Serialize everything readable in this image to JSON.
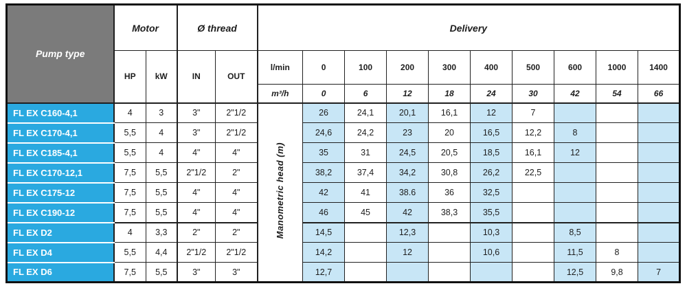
{
  "header": {
    "pump_type": "Pump type",
    "motor": "Motor",
    "thread": "Ø thread",
    "delivery": "Delivery",
    "hp": "HP",
    "kw": "kW",
    "in": "IN",
    "out": "OUT",
    "lmin_label": "l/min",
    "m3h_label": "m³/h",
    "lmin_values": [
      "0",
      "100",
      "200",
      "300",
      "400",
      "500",
      "600",
      "1000",
      "1400"
    ],
    "m3h_values": [
      "0",
      "6",
      "12",
      "18",
      "24",
      "30",
      "42",
      "54",
      "66"
    ],
    "manometric_label": "Manometric head (m)"
  },
  "rows": [
    {
      "name": "FL EX C160-4,1",
      "hp": "4",
      "kw": "3",
      "in": "3\"",
      "out": "2\"1/2",
      "values": [
        "26",
        "24,1",
        "20,1",
        "16,1",
        "12",
        "7",
        "",
        "",
        ""
      ]
    },
    {
      "name": "FL EX C170-4,1",
      "hp": "5,5",
      "kw": "4",
      "in": "3\"",
      "out": "2\"1/2",
      "values": [
        "24,6",
        "24,2",
        "23",
        "20",
        "16,5",
        "12,2",
        "8",
        "",
        ""
      ]
    },
    {
      "name": "FL EX C185-4,1",
      "hp": "5,5",
      "kw": "4",
      "in": "4\"",
      "out": "4\"",
      "values": [
        "35",
        "31",
        "24,5",
        "20,5",
        "18,5",
        "16,1",
        "12",
        "",
        ""
      ]
    },
    {
      "name": "FL EX C170-12,1",
      "hp": "7,5",
      "kw": "5,5",
      "in": "2\"1/2",
      "out": "2\"",
      "values": [
        "38,2",
        "37,4",
        "34,2",
        "30,8",
        "26,2",
        "22,5",
        "",
        "",
        ""
      ]
    },
    {
      "name": "FL EX C175-12",
      "hp": "7,5",
      "kw": "5,5",
      "in": "4\"",
      "out": "4\"",
      "values": [
        "42",
        "41",
        "38.6",
        "36",
        "32,5",
        "",
        "",
        "",
        ""
      ]
    },
    {
      "name": "FL EX C190-12",
      "hp": "7,5",
      "kw": "5,5",
      "in": "4\"",
      "out": "4\"",
      "values": [
        "46",
        "45",
        "42",
        "38,3",
        "35,5",
        "",
        "",
        "",
        ""
      ]
    },
    {
      "name": "FL EX D2",
      "hp": "4",
      "kw": "3,3",
      "in": "2\"",
      "out": "2\"",
      "values": [
        "14,5",
        "",
        "12,3",
        "",
        "10,3",
        "",
        "8,5",
        "",
        ""
      ]
    },
    {
      "name": "FL EX D4",
      "hp": "5,5",
      "kw": "4,4",
      "in": "2\"1/2",
      "out": "2\"1/2",
      "values": [
        "14,2",
        "",
        "12",
        "",
        "10,6",
        "",
        "11,5",
        "8",
        ""
      ]
    },
    {
      "name": "FL EX D6",
      "hp": "7,5",
      "kw": "5,5",
      "in": "3\"",
      "out": "3\"",
      "values": [
        "12,7",
        "",
        "",
        "",
        "",
        "",
        "12,5",
        "9,8",
        "7"
      ]
    }
  ],
  "colors": {
    "pump_cell_blue": "#2aa9e0",
    "light_blue_column": "#c8e6f6",
    "header_gray": "#7b7b7b",
    "border_black": "#1f1f1f"
  }
}
